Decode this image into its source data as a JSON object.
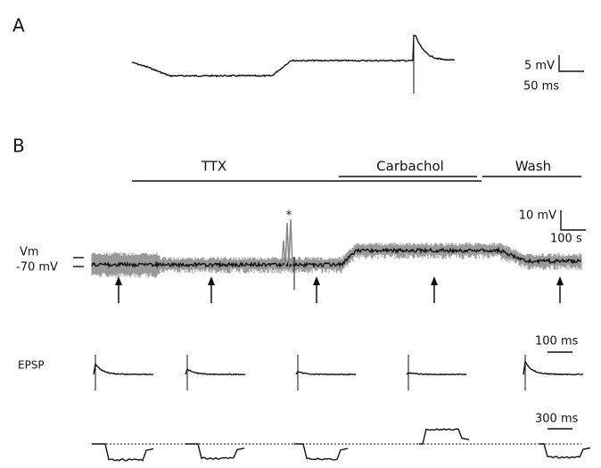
{
  "panel_a": {
    "label": "A",
    "scale_y": "5 mV",
    "scale_x": "50 ms"
  },
  "panel_b": {
    "label": "B",
    "conditions": [
      "TTX",
      "Carbachol",
      "Wash"
    ],
    "scale_y": "10 mV",
    "scale_x": "100 s",
    "vm_label": "Vm",
    "vm_value": "-70 mV",
    "spike_marker": "*",
    "epsp_label": "EPSP",
    "epsp_scale": "100 ms",
    "bottom_scale": "300 ms"
  }
}
